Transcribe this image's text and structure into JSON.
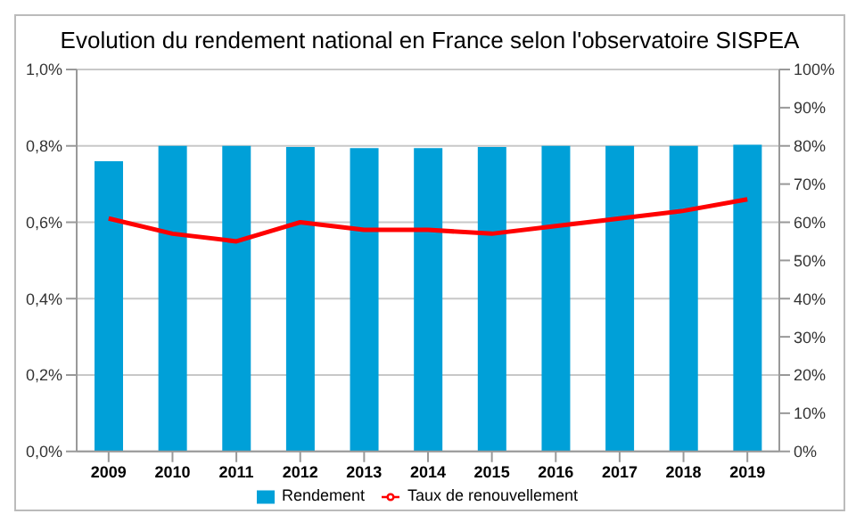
{
  "chart_data": {
    "type": "bar",
    "title": "Evolution du rendement national en France selon l'observatoire SISPEA",
    "categories": [
      "2009",
      "2010",
      "2011",
      "2012",
      "2013",
      "2014",
      "2015",
      "2016",
      "2017",
      "2018",
      "2019"
    ],
    "series": [
      {
        "name": "Rendement",
        "axis": "y2",
        "color": "#00a0d8",
        "values": [
          76,
          80,
          80,
          79.7,
          79.4,
          79.4,
          79.7,
          80,
          80,
          80,
          80.3
        ]
      },
      {
        "name": "Taux de renouvellement",
        "type": "line",
        "axis": "y",
        "color": "#ff0000",
        "values": [
          0.61,
          0.57,
          0.55,
          0.6,
          0.58,
          0.58,
          0.57,
          0.59,
          0.61,
          0.63,
          0.66
        ]
      }
    ],
    "ylim": [
      0,
      1
    ],
    "yticks": [
      {
        "value": 0,
        "label": "0,0%"
      },
      {
        "value": 0.2,
        "label": "0,2%"
      },
      {
        "value": 0.4,
        "label": "0,4%"
      },
      {
        "value": 0.6,
        "label": "0,6%"
      },
      {
        "value": 0.8,
        "label": "0,8%"
      },
      {
        "value": 1,
        "label": "1,0%"
      }
    ],
    "y2lim": [
      0,
      100
    ],
    "y2ticks": [
      {
        "value": 0,
        "label": "0%"
      },
      {
        "value": 10,
        "label": "10%"
      },
      {
        "value": 20,
        "label": "20%"
      },
      {
        "value": 30,
        "label": "30%"
      },
      {
        "value": 40,
        "label": "40%"
      },
      {
        "value": 50,
        "label": "50%"
      },
      {
        "value": 60,
        "label": "60%"
      },
      {
        "value": 70,
        "label": "70%"
      },
      {
        "value": 80,
        "label": "80%"
      },
      {
        "value": 90,
        "label": "90%"
      },
      {
        "value": 100,
        "label": "100%"
      }
    ],
    "grid": "y",
    "legend": "bottom",
    "marker": "none",
    "line_style": "solid"
  }
}
